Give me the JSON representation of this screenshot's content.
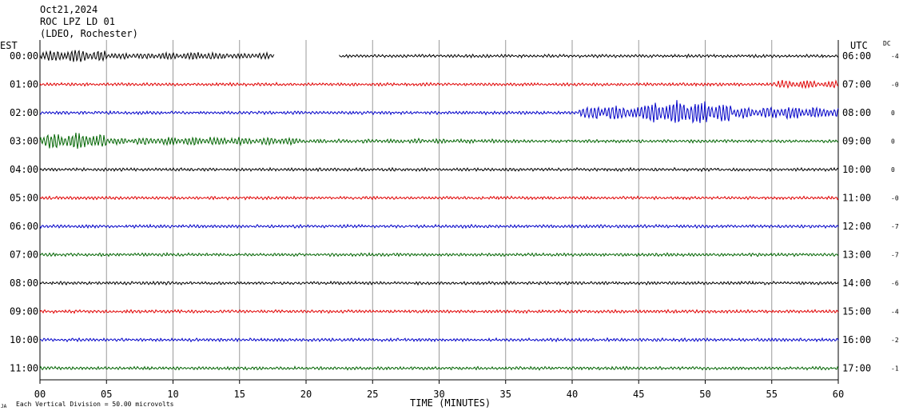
{
  "header": {
    "date": "Oct21,2024",
    "station": "ROC LPZ LD 01",
    "network": "(LDEO, Rochester)"
  },
  "labels": {
    "left_timezone": "EST",
    "right_timezone": "UTC",
    "dc_label": "DC",
    "scale_note": "Each Vertical Division =   50.00 microvolts",
    "corner_mark": "JA"
  },
  "chart_data": {
    "type": "line",
    "title": "",
    "xlabel": "TIME (MINUTES)",
    "ylabel": "",
    "xlim": [
      0,
      60
    ],
    "x_ticks": [
      "00",
      "05",
      "10",
      "15",
      "20",
      "25",
      "30",
      "35",
      "40",
      "45",
      "50",
      "55",
      "60"
    ],
    "grid": true,
    "trace_colors": [
      "#000000",
      "#e00000",
      "#0000c8",
      "#006400"
    ],
    "rows": [
      {
        "est": "00:00",
        "utc": "06:00",
        "dc": "-4",
        "color": "#000000",
        "segments": [
          [
            0,
            17.6
          ],
          [
            22.5,
            60
          ]
        ],
        "bursts": [
          {
            "start": 0,
            "end": 5,
            "amp": 9
          },
          {
            "start": 5,
            "end": 17.6,
            "amp": 5
          }
        ]
      },
      {
        "est": "01:00",
        "utc": "07:00",
        "dc": "-0",
        "color": "#e00000",
        "segments": [
          [
            0,
            60
          ]
        ],
        "bursts": [
          {
            "start": 55,
            "end": 60,
            "amp": 6
          }
        ]
      },
      {
        "est": "02:00",
        "utc": "08:00",
        "dc": "0",
        "color": "#0000c8",
        "segments": [
          [
            0,
            60
          ]
        ],
        "bursts": [
          {
            "start": 40.5,
            "end": 45,
            "amp": 11
          },
          {
            "start": 45,
            "end": 52,
            "amp": 18
          },
          {
            "start": 52,
            "end": 60,
            "amp": 9
          }
        ]
      },
      {
        "est": "03:00",
        "utc": "09:00",
        "dc": "0",
        "color": "#006400",
        "segments": [
          [
            0,
            60
          ]
        ],
        "bursts": [
          {
            "start": 0,
            "end": 5,
            "amp": 12
          },
          {
            "start": 5,
            "end": 20,
            "amp": 6
          },
          {
            "start": 20,
            "end": 35,
            "amp": 3
          }
        ]
      },
      {
        "est": "04:00",
        "utc": "10:00",
        "dc": "0",
        "color": "#000000",
        "segments": [
          [
            0,
            60
          ]
        ],
        "bursts": []
      },
      {
        "est": "05:00",
        "utc": "11:00",
        "dc": "-0",
        "color": "#e00000",
        "segments": [
          [
            0,
            60
          ]
        ],
        "bursts": []
      },
      {
        "est": "06:00",
        "utc": "12:00",
        "dc": "-7",
        "color": "#0000c8",
        "segments": [
          [
            0,
            60
          ]
        ],
        "bursts": []
      },
      {
        "est": "07:00",
        "utc": "13:00",
        "dc": "-7",
        "color": "#006400",
        "segments": [
          [
            0,
            60
          ]
        ],
        "bursts": []
      },
      {
        "est": "08:00",
        "utc": "14:00",
        "dc": "-6",
        "color": "#000000",
        "segments": [
          [
            0,
            60
          ]
        ],
        "bursts": []
      },
      {
        "est": "09:00",
        "utc": "15:00",
        "dc": "-4",
        "color": "#e00000",
        "segments": [
          [
            0,
            60
          ]
        ],
        "bursts": []
      },
      {
        "est": "10:00",
        "utc": "16:00",
        "dc": "-2",
        "color": "#0000c8",
        "segments": [
          [
            0,
            60
          ]
        ],
        "bursts": []
      },
      {
        "est": "11:00",
        "utc": "17:00",
        "dc": "-1",
        "color": "#006400",
        "segments": [
          [
            0,
            60
          ]
        ],
        "bursts": []
      }
    ]
  }
}
